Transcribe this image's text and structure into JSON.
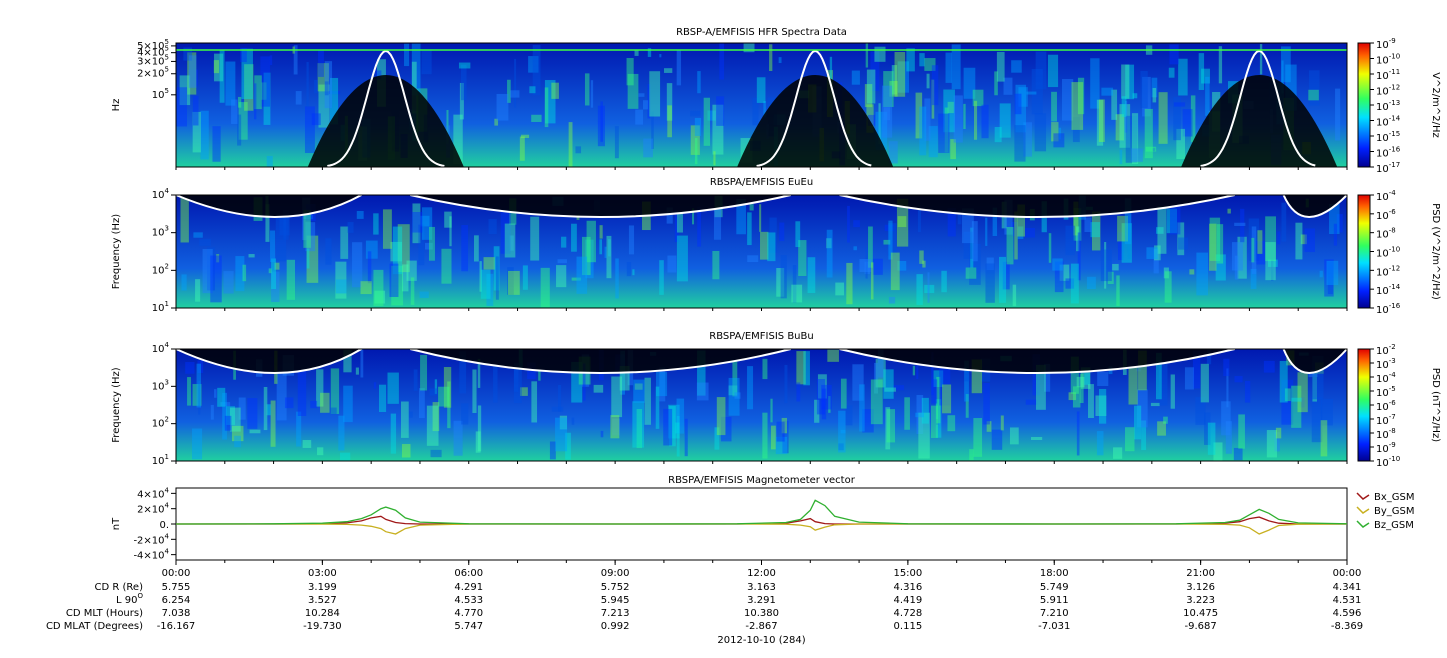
{
  "chart_data": [
    {
      "type": "spectrogram",
      "title": "RBSP-A/EMFISIS  HFR Spectra Data",
      "ylabel": "Hz",
      "log_y": true,
      "ylim": [
        9300,
        550000
      ],
      "yticks": [
        {
          "value": 500000,
          "label": "5×10",
          "exponent": "5"
        },
        {
          "value": 400000,
          "label": "4×10",
          "exponent": "5"
        },
        {
          "value": 300000,
          "label": "3×10",
          "exponent": "5"
        },
        {
          "value": 200000,
          "label": "2×10",
          "exponent": "5"
        },
        {
          "value": 100000,
          "label": "10",
          "exponent": "5"
        }
      ],
      "zlabel": "V^2/m^2/Hz",
      "zlim": [
        1e-17,
        1e-09
      ],
      "zticks": [
        {
          "value": 1e-09,
          "label": "10",
          "exponent": "-9"
        },
        {
          "value": 1e-10,
          "label": "10",
          "exponent": "-10"
        },
        {
          "value": 1e-11,
          "label": "10",
          "exponent": "-11"
        },
        {
          "value": 1e-12,
          "label": "10",
          "exponent": "-12"
        },
        {
          "value": 1e-13,
          "label": "10",
          "exponent": "-13"
        },
        {
          "value": 1e-14,
          "label": "10",
          "exponent": "-14"
        },
        {
          "value": 1e-15,
          "label": "10",
          "exponent": "-15"
        },
        {
          "value": 1e-16,
          "label": "10",
          "exponent": "-16"
        },
        {
          "value": 1e-17,
          "label": "10",
          "exponent": "-17"
        }
      ]
    },
    {
      "type": "spectrogram",
      "title": "RBSPA/EMFISIS  EuEu",
      "ylabel": "Frequency (Hz)",
      "log_y": true,
      "ylim": [
        10,
        10000
      ],
      "yticks": [
        {
          "value": 10000,
          "label": "10",
          "exponent": "4"
        },
        {
          "value": 1000,
          "label": "10",
          "exponent": "3"
        },
        {
          "value": 100,
          "label": "10",
          "exponent": "2"
        },
        {
          "value": 10,
          "label": "10",
          "exponent": "1"
        }
      ],
      "zlabel": "PSD (V^2/m^2/Hz)",
      "zlim": [
        1e-16,
        0.0001
      ],
      "zticks": [
        {
          "value": 0.0001,
          "label": "10",
          "exponent": "-4"
        },
        {
          "value": 1e-06,
          "label": "10",
          "exponent": "-6"
        },
        {
          "value": 1e-08,
          "label": "10",
          "exponent": "-8"
        },
        {
          "value": 1e-10,
          "label": "10",
          "exponent": "-10"
        },
        {
          "value": 1e-12,
          "label": "10",
          "exponent": "-12"
        },
        {
          "value": 1e-14,
          "label": "10",
          "exponent": "-14"
        },
        {
          "value": 1e-16,
          "label": "10",
          "exponent": "-16"
        }
      ]
    },
    {
      "type": "spectrogram",
      "title": "RBSPA/EMFISIS  BuBu",
      "ylabel": "Frequency (Hz)",
      "log_y": true,
      "ylim": [
        10,
        10000
      ],
      "yticks": [
        {
          "value": 10000,
          "label": "10",
          "exponent": "4"
        },
        {
          "value": 1000,
          "label": "10",
          "exponent": "3"
        },
        {
          "value": 100,
          "label": "10",
          "exponent": "2"
        },
        {
          "value": 10,
          "label": "10",
          "exponent": "1"
        }
      ],
      "zlabel": "PSD (nT^2/Hz)",
      "zlim": [
        1e-10,
        0.01
      ],
      "zticks": [
        {
          "value": 0.01,
          "label": "10",
          "exponent": "-2"
        },
        {
          "value": 0.001,
          "label": "10",
          "exponent": "-3"
        },
        {
          "value": 0.0001,
          "label": "10",
          "exponent": "-4"
        },
        {
          "value": 1e-05,
          "label": "10",
          "exponent": "-5"
        },
        {
          "value": 1e-06,
          "label": "10",
          "exponent": "-6"
        },
        {
          "value": 1e-07,
          "label": "10",
          "exponent": "-7"
        },
        {
          "value": 1e-08,
          "label": "10",
          "exponent": "-8"
        },
        {
          "value": 1e-09,
          "label": "10",
          "exponent": "-9"
        },
        {
          "value": 1e-10,
          "label": "10",
          "exponent": "-10"
        }
      ]
    },
    {
      "type": "line",
      "title": "RBSPA/EMFISIS  Magnetometer vector",
      "ylabel": "nT",
      "ylim": [
        -47000,
        47000
      ],
      "yticks": [
        {
          "value": 40000,
          "label": "4×10",
          "exponent": "4"
        },
        {
          "value": 20000,
          "label": "2×10",
          "exponent": "4"
        },
        {
          "value": 0,
          "label": "0."
        },
        {
          "value": -20000,
          "label": "-2×10",
          "exponent": "4"
        },
        {
          "value": -40000,
          "label": "-4×10",
          "exponent": "4"
        }
      ],
      "xlim": [
        0,
        24
      ],
      "xticks": [
        {
          "value": 0,
          "label": "00:00"
        },
        {
          "value": 3,
          "label": "03:00"
        },
        {
          "value": 6,
          "label": "06:00"
        },
        {
          "value": 9,
          "label": "09:00"
        },
        {
          "value": 12,
          "label": "12:00"
        },
        {
          "value": 15,
          "label": "15:00"
        },
        {
          "value": 18,
          "label": "18:00"
        },
        {
          "value": 21,
          "label": "21:00"
        },
        {
          "value": 24,
          "label": "00:00"
        }
      ],
      "x": [
        0,
        2,
        3,
        3.5,
        3.8,
        4.0,
        4.2,
        4.3,
        4.5,
        4.7,
        5,
        6,
        9,
        11.5,
        12.5,
        12.8,
        13.0,
        13.1,
        13.3,
        13.5,
        14,
        15,
        18,
        20.5,
        21.5,
        21.8,
        22.0,
        22.2,
        22.4,
        22.6,
        23,
        24
      ],
      "series": [
        {
          "name": "Bx_GSM",
          "color": "#a01818",
          "values": [
            0,
            0,
            200,
            1500,
            4000,
            8000,
            10000,
            6000,
            2000,
            500,
            0,
            0,
            0,
            0,
            1000,
            4000,
            7000,
            3000,
            500,
            0,
            0,
            0,
            0,
            0,
            1000,
            3000,
            7000,
            9000,
            4000,
            1000,
            0,
            0
          ]
        },
        {
          "name": "By_GSM",
          "color": "#c8b020",
          "values": [
            0,
            0,
            -100,
            -500,
            -1500,
            -3000,
            -6000,
            -10000,
            -13000,
            -6000,
            -1500,
            0,
            0,
            0,
            -300,
            -1500,
            -3500,
            -8000,
            -4000,
            -1000,
            0,
            0,
            0,
            0,
            -500,
            -1500,
            -5000,
            -13000,
            -8000,
            -2000,
            -300,
            0
          ]
        },
        {
          "name": "Bz_GSM",
          "color": "#30b030",
          "values": [
            0,
            200,
            1000,
            3000,
            7000,
            12000,
            20000,
            22000,
            18000,
            8000,
            2500,
            300,
            0,
            300,
            2000,
            6000,
            18000,
            31000,
            24000,
            10000,
            2500,
            300,
            0,
            300,
            2000,
            5000,
            12000,
            19000,
            14000,
            6000,
            1500,
            200
          ]
        }
      ]
    }
  ],
  "ephemeris": {
    "rows": [
      {
        "label": "CD R (Re)",
        "values": [
          "5.755",
          "3.199",
          "4.291",
          "5.752",
          "3.163",
          "4.316",
          "5.749",
          "3.126",
          "4.341"
        ]
      },
      {
        "label": "L 90",
        "exponent": "O",
        "values": [
          "6.254",
          "3.527",
          "4.533",
          "5.945",
          "3.291",
          "4.419",
          "5.911",
          "3.223",
          "4.531"
        ]
      },
      {
        "label": "CD MLT (Hours)",
        "values": [
          "7.038",
          "10.284",
          "4.770",
          "7.213",
          "10.380",
          "4.728",
          "7.210",
          "10.475",
          "4.596"
        ]
      },
      {
        "label": "CD MLAT (Degrees)",
        "values": [
          "-16.167",
          "-19.730",
          "5.747",
          "0.992",
          "-2.867",
          "0.115",
          "-7.031",
          "-9.687",
          "-8.369"
        ]
      }
    ],
    "date_label": "2012-10-10 (284)"
  }
}
